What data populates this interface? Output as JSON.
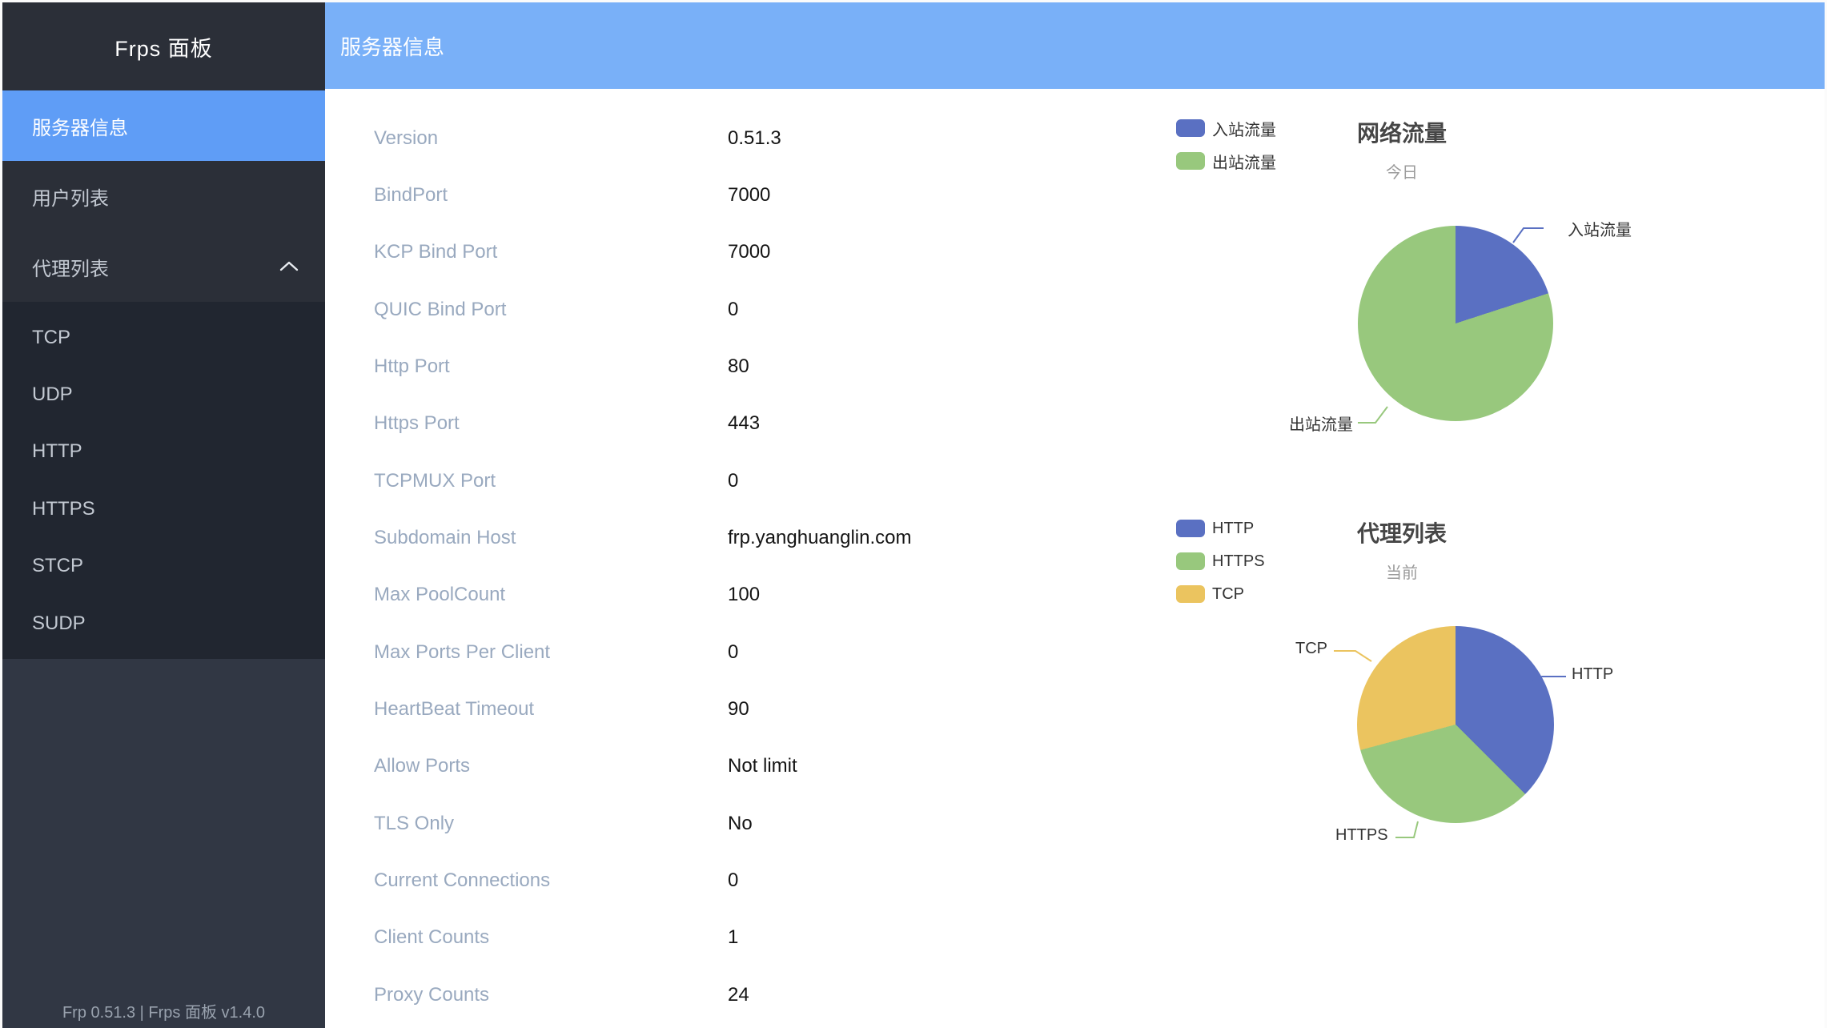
{
  "sidebar": {
    "title": "Frps 面板",
    "menu": [
      {
        "id": "server-info",
        "label": "服务器信息",
        "active": true,
        "has_submenu": false
      },
      {
        "id": "user-list",
        "label": "用户列表",
        "active": false,
        "has_submenu": false
      },
      {
        "id": "proxy-list",
        "label": "代理列表",
        "active": false,
        "has_submenu": true,
        "expanded": true
      }
    ],
    "submenu_items": [
      {
        "id": "tcp",
        "label": "TCP"
      },
      {
        "id": "udp",
        "label": "UDP"
      },
      {
        "id": "http",
        "label": "HTTP"
      },
      {
        "id": "https",
        "label": "HTTPS"
      },
      {
        "id": "stcp",
        "label": "STCP"
      },
      {
        "id": "sudp",
        "label": "SUDP"
      }
    ],
    "footer": "Frp 0.51.3 | Frps 面板 v1.4.0"
  },
  "header": {
    "title": "服务器信息"
  },
  "server_info": {
    "rows": [
      {
        "label": "Version",
        "value": "0.51.3"
      },
      {
        "label": "BindPort",
        "value": "7000"
      },
      {
        "label": "KCP Bind Port",
        "value": "7000"
      },
      {
        "label": "QUIC Bind Port",
        "value": "0"
      },
      {
        "label": "Http Port",
        "value": "80"
      },
      {
        "label": "Https Port",
        "value": "443"
      },
      {
        "label": "TCPMUX Port",
        "value": "0"
      },
      {
        "label": "Subdomain Host",
        "value": "frp.yanghuanglin.com"
      },
      {
        "label": "Max PoolCount",
        "value": "100"
      },
      {
        "label": "Max Ports Per Client",
        "value": "0"
      },
      {
        "label": "HeartBeat Timeout",
        "value": "90"
      },
      {
        "label": "Allow Ports",
        "value": "Not limit"
      },
      {
        "label": "TLS Only",
        "value": "No"
      },
      {
        "label": "Current Connections",
        "value": "0"
      },
      {
        "label": "Client Counts",
        "value": "1"
      },
      {
        "label": "Proxy Counts",
        "value": "24"
      }
    ]
  },
  "chart_data": [
    {
      "type": "pie",
      "title": "网络流量",
      "subtitle": "今日",
      "legend_position": "top-left",
      "legend": [
        "入站流量",
        "出站流量"
      ],
      "series": [
        {
          "name": "入站流量",
          "value": 20
        },
        {
          "name": "出站流量",
          "value": 80
        }
      ],
      "note": "values are percent shares estimated from arc angles (no numeric labels shown)",
      "colors": [
        "#5a70c2",
        "#98c87d"
      ]
    },
    {
      "type": "pie",
      "title": "代理列表",
      "subtitle": "当前",
      "legend_position": "top-left",
      "legend": [
        "HTTP",
        "HTTPS",
        "TCP"
      ],
      "series": [
        {
          "name": "HTTP",
          "value": 9
        },
        {
          "name": "HTTPS",
          "value": 8
        },
        {
          "name": "TCP",
          "value": 7
        }
      ],
      "note": "proxy counts estimated from arc angles; total Proxy Counts = 24",
      "colors": [
        "#5a70c2",
        "#98c87d",
        "#ebc45f"
      ]
    }
  ],
  "palette": {
    "accent_header_bg": "#79b0f8",
    "accent_active_item_bg": "#5f9df6",
    "sidebar_bg": "#2b2f38",
    "submenu_bg": "#212630",
    "sidebar_lower_bg": "#313744",
    "series_blue": "#5a70c2",
    "series_green": "#98c87d",
    "series_yellow": "#ebc45f"
  }
}
